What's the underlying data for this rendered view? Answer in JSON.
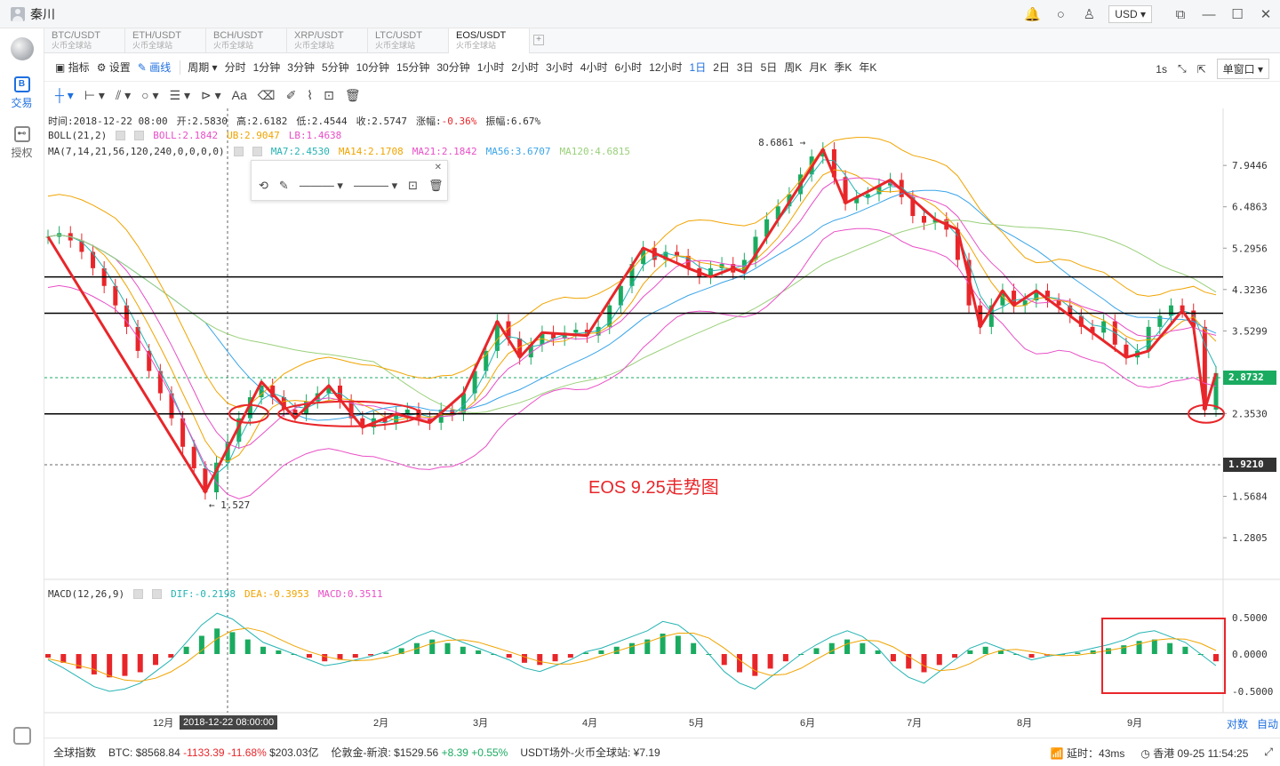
{
  "window": {
    "user": "秦川",
    "currency": "USD"
  },
  "sidebar": {
    "items": [
      {
        "label": "交易",
        "icon": "trade-icon",
        "glyph": "B"
      },
      {
        "label": "授权",
        "icon": "key-icon",
        "glyph": "⊷"
      }
    ]
  },
  "tabs": [
    {
      "label": "BTC/USDT",
      "sub": "火币全球站"
    },
    {
      "label": "ETH/USDT",
      "sub": "火币全球站"
    },
    {
      "label": "BCH/USDT",
      "sub": "火币全球站"
    },
    {
      "label": "XRP/USDT",
      "sub": "火币全球站"
    },
    {
      "label": "LTC/USDT",
      "sub": "火币全球站"
    },
    {
      "label": "EOS/USDT",
      "sub": "火币全球站"
    }
  ],
  "tab_add": "+",
  "toolbar": {
    "indicator": "指标",
    "settings": "设置",
    "drawing": "画线",
    "period": "周期",
    "periods": [
      "分时",
      "1分钟",
      "3分钟",
      "5分钟",
      "10分钟",
      "15分钟",
      "30分钟",
      "1小时",
      "2小时",
      "3小时",
      "4小时",
      "6小时",
      "12小时",
      "1日",
      "2日",
      "3日",
      "5日",
      "周K",
      "月K",
      "季K",
      "年K"
    ],
    "active_period": "1日",
    "interval": "1s",
    "window_mode": "单窗口"
  },
  "draw_tools": {
    "text_tool": "Aa"
  },
  "info": {
    "time": "时间:2018-12-22 08:00",
    "open": "开:2.5830",
    "high": "高:2.6182",
    "low": "低:2.4544",
    "close": "收:2.5747",
    "change_label": "涨幅:",
    "change": "-0.36%",
    "amplitude": "振幅:6.67%"
  },
  "boll": {
    "name": "BOLL(21,2)",
    "boll": "BOLL:2.1842",
    "ub": "UB:2.9047",
    "lb": "LB:1.4638"
  },
  "ma": {
    "name": "MA(7,14,21,56,120,240,0,0,0,0)",
    "ma7": "MA7:2.4530",
    "ma14": "MA14:2.1708",
    "ma21": "MA21:2.1842",
    "ma56": "MA56:3.6707",
    "ma120": "MA120:4.6815"
  },
  "macd": {
    "name": "MACD(12,26,9)",
    "dif": "DIF:-0.2198",
    "dea": "DEA:-0.3953",
    "macd": "MACD:0.3511"
  },
  "colors": {
    "up": "#1aab60",
    "down": "#e8262a",
    "accent": "#1e6fe0",
    "boll_mid": "#e84fc6",
    "ub": "#f0a400",
    "ma7": "#26b3b3",
    "ma14": "#f0a400",
    "ma21": "#e84fc6",
    "ma56": "#3aa5e8",
    "ma120": "#9ad07a"
  },
  "chart_data": {
    "type": "candlestick",
    "y_ticks": [
      "7.9446",
      "6.4863",
      "5.2956",
      "4.3236",
      "3.5299",
      "2.3530",
      "1.5684",
      "1.2805"
    ],
    "macd_ticks": [
      "0.5000",
      "0.0000",
      "-0.5000"
    ],
    "x_ticks": [
      "12月",
      "2月",
      "3月",
      "4月",
      "5月",
      "6月",
      "7月",
      "8月",
      "9月"
    ],
    "current_price": "2.8732",
    "low_line_price": "1.9210",
    "high_label": "8.6861",
    "low_label": "1.527",
    "crosshair_date": "2018-12-22 08:00:00",
    "horizontal_levels": [
      4.6,
      3.85,
      2.35
    ],
    "close_series": [
      5.6,
      5.7,
      5.5,
      5.2,
      4.8,
      4.4,
      4.0,
      3.6,
      3.2,
      2.9,
      2.6,
      2.3,
      2.0,
      1.8,
      1.6,
      1.85,
      2.05,
      2.3,
      2.55,
      2.7,
      2.55,
      2.4,
      2.35,
      2.5,
      2.6,
      2.7,
      2.5,
      2.3,
      2.2,
      2.3,
      2.25,
      2.35,
      2.4,
      2.3,
      2.25,
      2.4,
      2.35,
      2.6,
      2.9,
      3.2,
      3.7,
      3.4,
      3.1,
      3.3,
      3.5,
      3.4,
      3.5,
      3.55,
      3.45,
      3.6,
      4.0,
      4.4,
      4.9,
      5.3,
      5.0,
      5.2,
      5.1,
      4.8,
      4.6,
      4.8,
      4.9,
      4.7,
      5.0,
      5.6,
      6.1,
      6.5,
      6.9,
      7.6,
      8.3,
      8.6,
      7.5,
      6.6,
      6.8,
      6.9,
      7.2,
      7.4,
      6.8,
      6.2,
      6.0,
      6.1,
      5.8,
      5.0,
      4.0,
      3.6,
      4.0,
      4.3,
      4.0,
      4.1,
      4.3,
      4.1,
      4.0,
      3.8,
      3.6,
      3.5,
      3.7,
      3.3,
      3.1,
      3.2,
      3.6,
      3.8,
      4.0,
      3.9,
      3.6,
      2.4,
      2.87
    ],
    "macd_hist": [
      -0.05,
      -0.12,
      -0.2,
      -0.28,
      -0.32,
      -0.3,
      -0.25,
      -0.15,
      -0.05,
      0.1,
      0.25,
      0.35,
      0.3,
      0.2,
      0.1,
      0.05,
      0.0,
      -0.05,
      -0.1,
      -0.08,
      -0.05,
      -0.02,
      0.02,
      0.08,
      0.15,
      0.2,
      0.15,
      0.1,
      0.05,
      0.0,
      -0.05,
      -0.12,
      -0.15,
      -0.1,
      -0.05,
      0.02,
      0.05,
      0.1,
      0.15,
      0.2,
      0.28,
      0.25,
      0.15,
      0.0,
      -0.15,
      -0.25,
      -0.3,
      -0.2,
      -0.1,
      0.0,
      0.08,
      0.15,
      0.2,
      0.15,
      0.05,
      -0.1,
      -0.2,
      -0.25,
      -0.15,
      -0.05,
      0.05,
      0.1,
      0.05,
      0.0,
      -0.05,
      -0.02,
      0.0,
      0.02,
      0.05,
      0.08,
      0.12,
      0.18,
      0.2,
      0.15,
      0.1,
      0.0,
      -0.1
    ]
  },
  "axis_buttons": {
    "log": "对数",
    "auto": "自动"
  },
  "annotation": "EOS 9.25走势图",
  "status": {
    "index": "全球指数",
    "btc_label": "BTC:",
    "btc_price": "$8568.84",
    "btc_change": "-1133.39",
    "btc_pct": "-11.68%",
    "btc_vol": "$203.03亿",
    "gold_label": "伦敦金-新浪:",
    "gold_price": "$1529.56",
    "gold_change": "+8.39",
    "gold_pct": "+0.55%",
    "usdt": "USDT场外-火币全球站: ¥7.19",
    "latency": "延时：43ms",
    "clock": "香港 09-25 11:54:25"
  }
}
